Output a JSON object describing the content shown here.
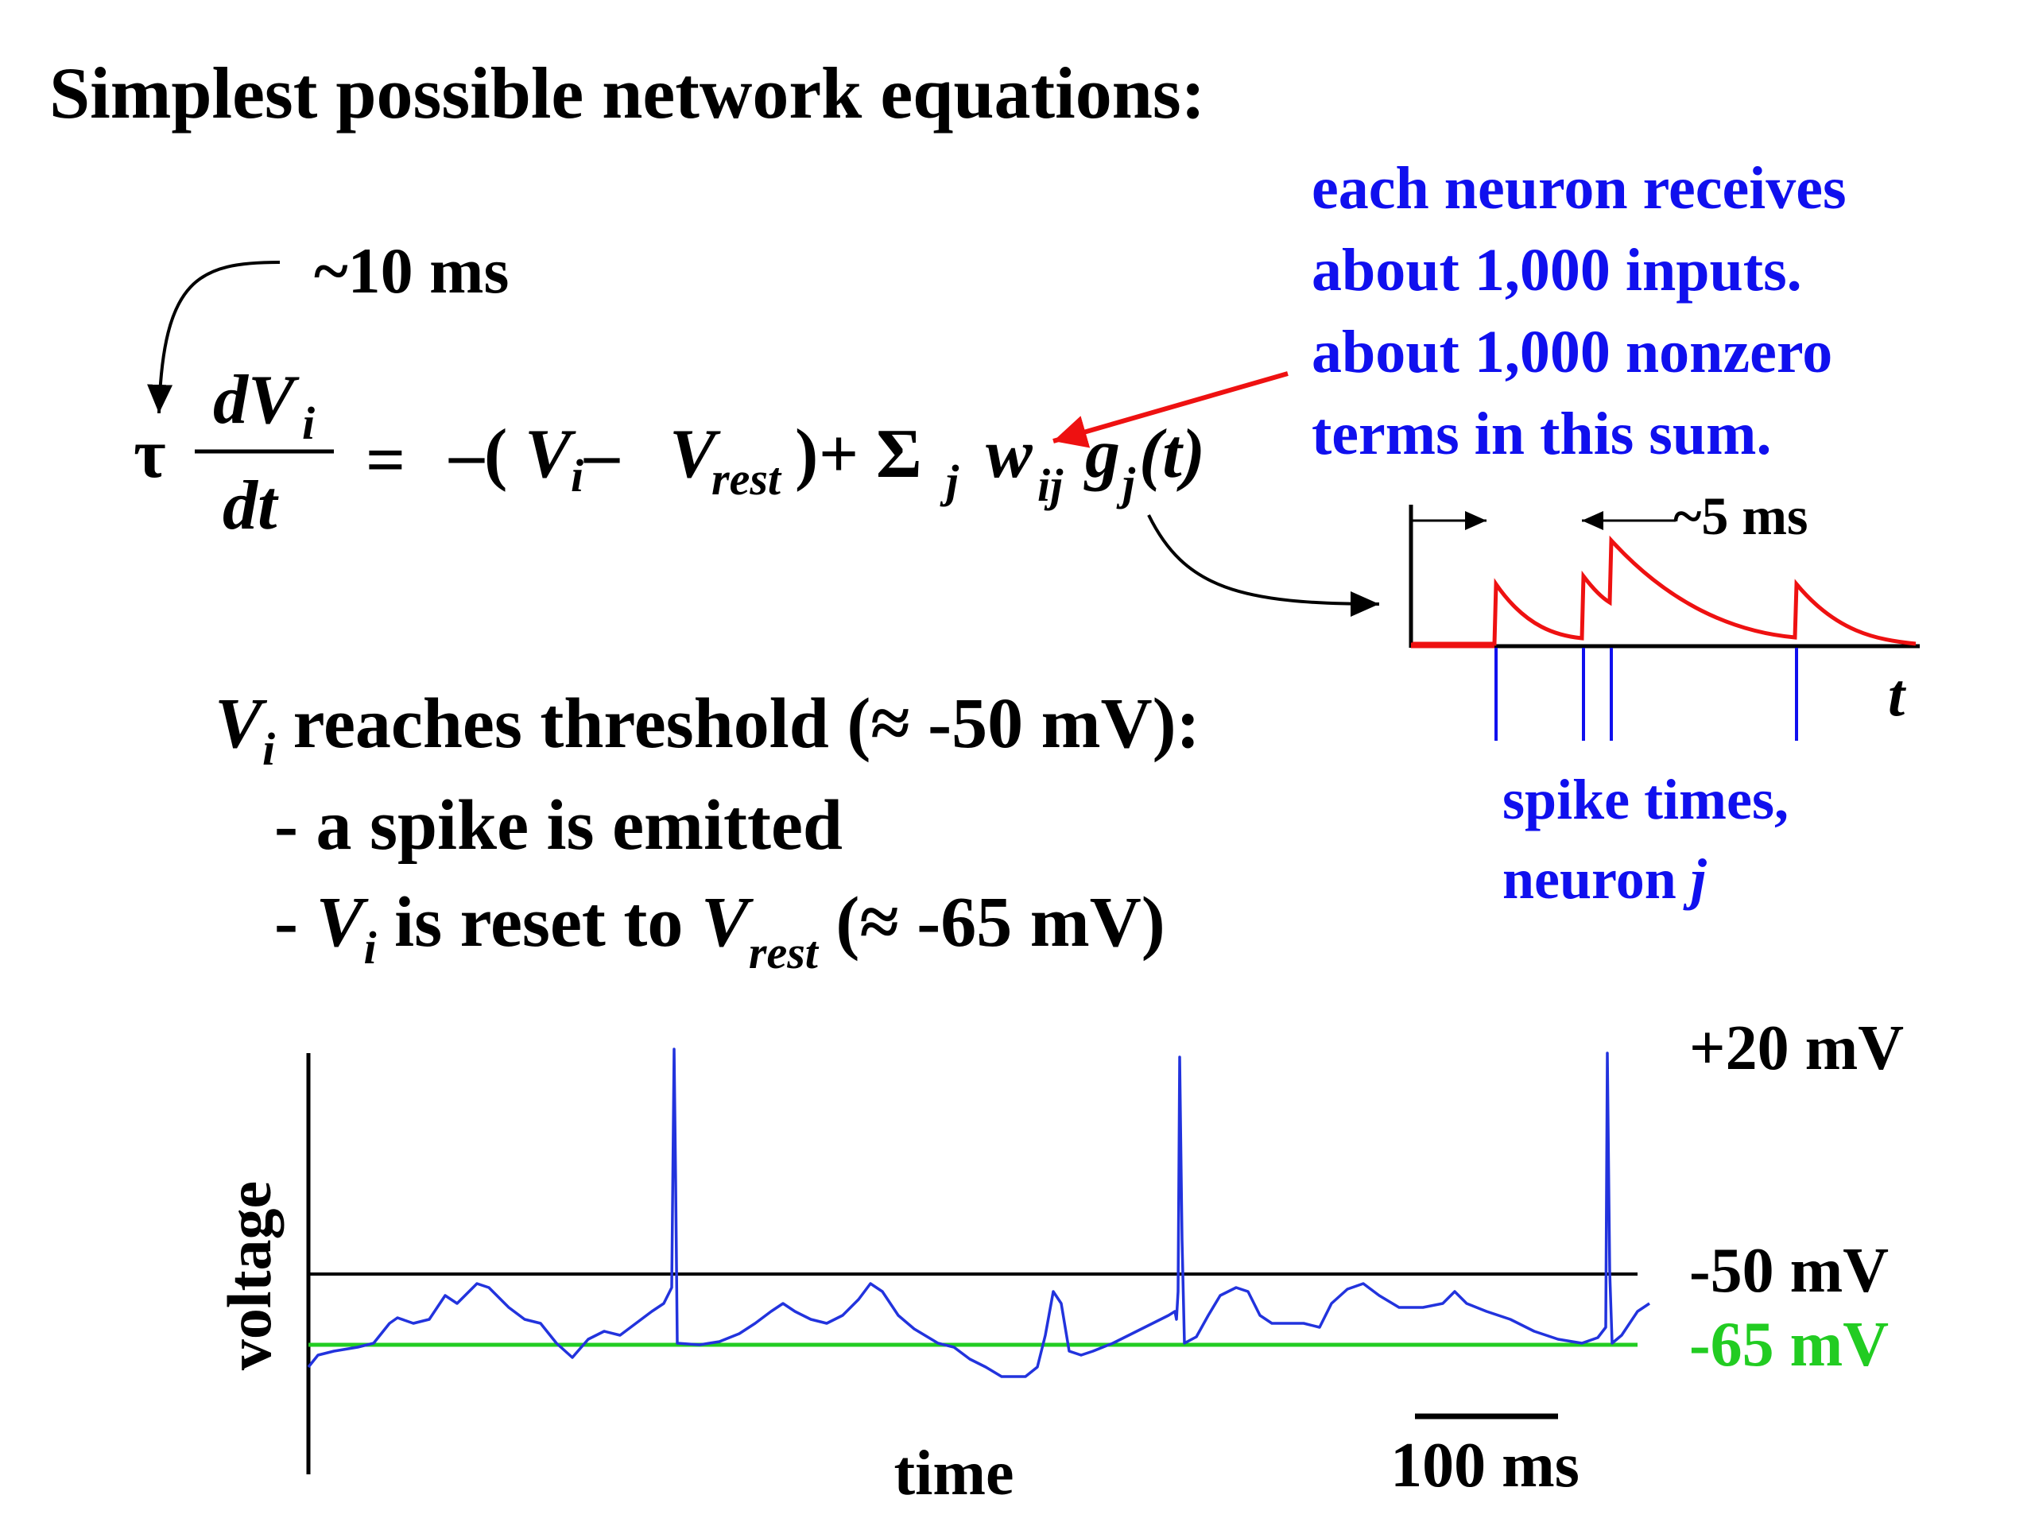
{
  "title": "Simplest possible network equations:",
  "tau_label": "~10 ms",
  "equation": {
    "tau": "τ",
    "dV": "dV",
    "i": "i",
    "dt": "dt",
    "eq": "=",
    "rhs1": "–(",
    "V": "V",
    "minus": " – ",
    "rest": "rest",
    "close": ")",
    "plus": " + Σ",
    "j": "j",
    "w": "w",
    "ij": "ij",
    "g": "g",
    "t_arg": "(t)"
  },
  "note": {
    "line1": "each neuron receives",
    "line2": "about 1,000 inputs.",
    "line3": "about 1,000 nonzero",
    "line4": "terms in this sum."
  },
  "inset": {
    "decay_label": "~5 ms",
    "t_label": "t",
    "spike_label1": "spike times,",
    "spike_label2": "neuron ",
    "spike_label_j": "j"
  },
  "threshold_text": {
    "V": "V",
    "i": "i",
    "line1": " reaches threshold (≈ -50 mV):",
    "bullet1": "- a spike is emitted",
    "bullet2_a": "- ",
    "bullet2_b": " is reset to ",
    "bullet2_rest": "rest",
    "bullet2_c": " (≈ -65 mV)"
  },
  "trace": {
    "plus20": "+20 mV",
    "minus50": "-50 mV",
    "minus65": "-65 mV",
    "ylabel": "voltage",
    "xlabel": "time",
    "scalebar": "100 ms"
  },
  "colors": {
    "blue": "#1010ee",
    "red": "#ee1111",
    "green": "#22cc22",
    "black": "#000000"
  }
}
